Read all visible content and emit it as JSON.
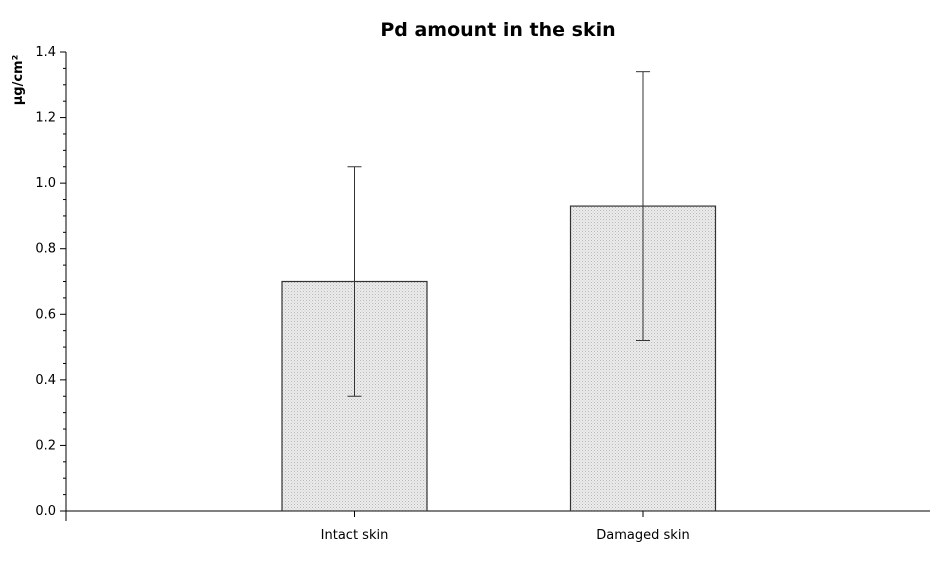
{
  "chart_data": {
    "type": "bar",
    "title": "Pd amount in the skin",
    "xlabel": "",
    "ylabel": "µg/cm²",
    "categories": [
      "Intact skin",
      "Damaged skin"
    ],
    "values": [
      0.7,
      0.93
    ],
    "error": [
      0.35,
      0.41
    ],
    "ylim": [
      0.0,
      1.4
    ],
    "yticks": [
      "0.0",
      "0.2",
      "0.4",
      "0.6",
      "0.8",
      "1.0",
      "1.2",
      "1.4"
    ],
    "ytick_values": [
      0.0,
      0.2,
      0.4,
      0.6,
      0.8,
      1.0,
      1.2,
      1.4
    ],
    "grid": false,
    "colors": {
      "bar_fill": "#e8e8e8",
      "bar_stroke": "#333333",
      "axis": "#000000"
    }
  }
}
